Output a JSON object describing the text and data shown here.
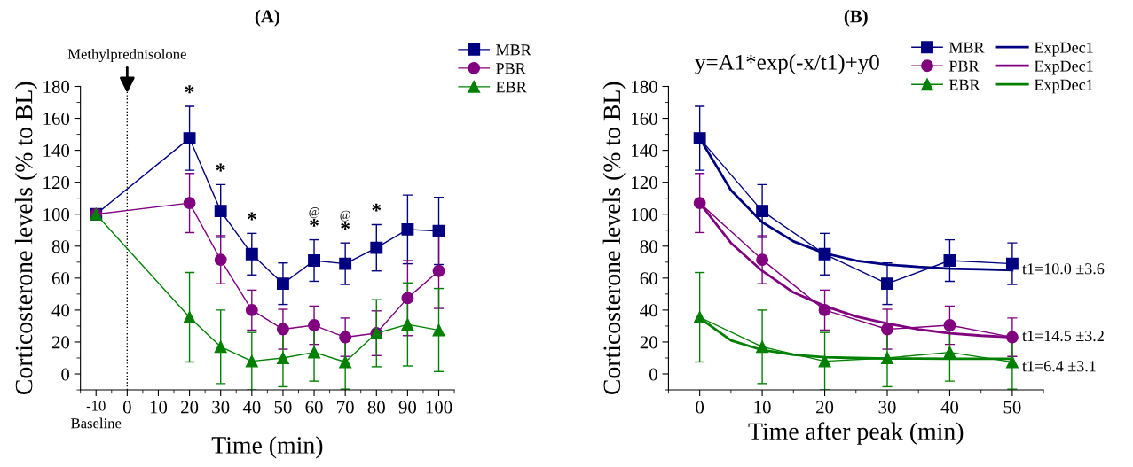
{
  "chart_data": [
    {
      "type": "line",
      "title": "(A)",
      "xlabel": "Time (min)",
      "ylabel": "Corticosterone levels (% to BL)",
      "x": [
        -10,
        20,
        30,
        40,
        50,
        60,
        70,
        80,
        90,
        100
      ],
      "xlim": [
        -15,
        105
      ],
      "xticks": [
        {
          "value": -10,
          "label": "-10\nBaseline"
        },
        0,
        10,
        20,
        30,
        40,
        50,
        60,
        70,
        80,
        90,
        100
      ],
      "ylim": [
        -10,
        180
      ],
      "yticks": [
        0,
        20,
        40,
        60,
        80,
        100,
        120,
        140,
        160,
        180
      ],
      "grid": false,
      "legend": "top right",
      "series": [
        {
          "name": "MBR",
          "color": "#000080",
          "marker": "square",
          "values": [
            100,
            147.5,
            102,
            75,
            56.5,
            71,
            69,
            79,
            90.5,
            89.5
          ],
          "errors": [
            null,
            20,
            16.5,
            13,
            13,
            13,
            13,
            14.5,
            21.5,
            21
          ]
        },
        {
          "name": "PBR",
          "color": "#800080",
          "marker": "circle",
          "values": [
            100,
            107,
            71.5,
            40,
            28,
            30.5,
            23,
            25.5,
            47.5,
            64.5
          ],
          "errors": [
            null,
            18.5,
            15,
            12.5,
            12.5,
            12,
            12,
            14,
            23.5,
            23.5
          ]
        },
        {
          "name": "EBR",
          "color": "#008000",
          "marker": "triangle",
          "values": [
            100,
            35.5,
            17,
            8,
            10,
            13.5,
            7.5,
            25.5,
            31,
            27.5
          ],
          "errors": [
            null,
            28,
            23,
            18,
            18,
            18,
            17,
            21,
            26,
            26
          ]
        }
      ],
      "ref_lines": [
        {
          "axis": "x",
          "value": 0,
          "label": "Methylprednisolone",
          "line_style": "dotted",
          "color": "#000000"
        }
      ],
      "annotations": [
        {
          "text": "*",
          "x": 20,
          "y": 147.5
        },
        {
          "text": "*",
          "x": 30,
          "y": 102
        },
        {
          "text": "*",
          "x": 40,
          "y": 75
        },
        {
          "text": "*",
          "x": 60,
          "y": 71
        },
        {
          "text": "@",
          "x": 60,
          "y": 84
        },
        {
          "text": "*",
          "x": 70,
          "y": 69
        },
        {
          "text": "@",
          "x": 70,
          "y": 82
        },
        {
          "text": "*",
          "x": 80,
          "y": 79
        }
      ]
    },
    {
      "type": "line",
      "title": "(B)",
      "xlabel": "Time after peak (min)",
      "ylabel": "Corticosterone levels (% to BL)",
      "x": [
        0,
        10,
        20,
        30,
        40,
        50
      ],
      "xlim": [
        -5,
        55
      ],
      "xticks": [
        0,
        10,
        20,
        30,
        40,
        50
      ],
      "ylim": [
        -10,
        180
      ],
      "yticks": [
        0,
        20,
        40,
        60,
        80,
        100,
        120,
        140,
        160,
        180
      ],
      "grid": false,
      "legend": "top right",
      "series": [
        {
          "name": "MBR",
          "color": "#000080",
          "marker": "square",
          "values": [
            147.5,
            102,
            75,
            56.5,
            71,
            69
          ],
          "errors": [
            20,
            16.5,
            13,
            13,
            13,
            13
          ]
        },
        {
          "name": "PBR",
          "color": "#800080",
          "marker": "circle",
          "values": [
            107,
            71.5,
            40,
            28,
            30.5,
            23
          ],
          "errors": [
            18.5,
            15,
            12.5,
            12.5,
            12,
            12
          ]
        },
        {
          "name": "EBR",
          "color": "#008000",
          "marker": "triangle",
          "values": [
            35.5,
            17,
            8,
            10,
            13.5,
            7.5
          ],
          "errors": [
            28,
            23,
            18,
            18,
            18,
            17
          ]
        },
        {
          "name": "ExpDec1",
          "color": "#000080",
          "marker": "none",
          "x": [
            0,
            5,
            10,
            15,
            20,
            25,
            30,
            35,
            40,
            45,
            50
          ],
          "values": [
            147.5,
            115,
            95,
            83,
            75.5,
            71,
            68.5,
            67,
            66,
            65.5,
            65
          ]
        },
        {
          "name": "ExpDec1",
          "color": "#800080",
          "marker": "none",
          "x": [
            0,
            5,
            10,
            15,
            20,
            25,
            30,
            35,
            40,
            45,
            50
          ],
          "values": [
            107,
            82,
            64.5,
            51,
            42.5,
            36,
            31.5,
            28,
            25.5,
            24,
            23
          ]
        },
        {
          "name": "ExpDec1",
          "color": "#008000",
          "marker": "none",
          "x": [
            0,
            5,
            10,
            15,
            20,
            25,
            30,
            35,
            40,
            45,
            50
          ],
          "values": [
            35,
            21,
            15,
            12,
            10.5,
            10,
            9.7,
            9.6,
            9.5,
            9.5,
            9.5
          ]
        }
      ],
      "annotations": [
        "y=A1*exp(-x/t1)+y0",
        {
          "text": "t1=10.0 ±3.6",
          "x": 50,
          "y": 65
        },
        {
          "text": "t1=14.5 ±3.2",
          "x": 50,
          "y": 23
        },
        {
          "text": "t1=6.4 ±3.1",
          "x": 50,
          "y": 4
        }
      ]
    }
  ]
}
